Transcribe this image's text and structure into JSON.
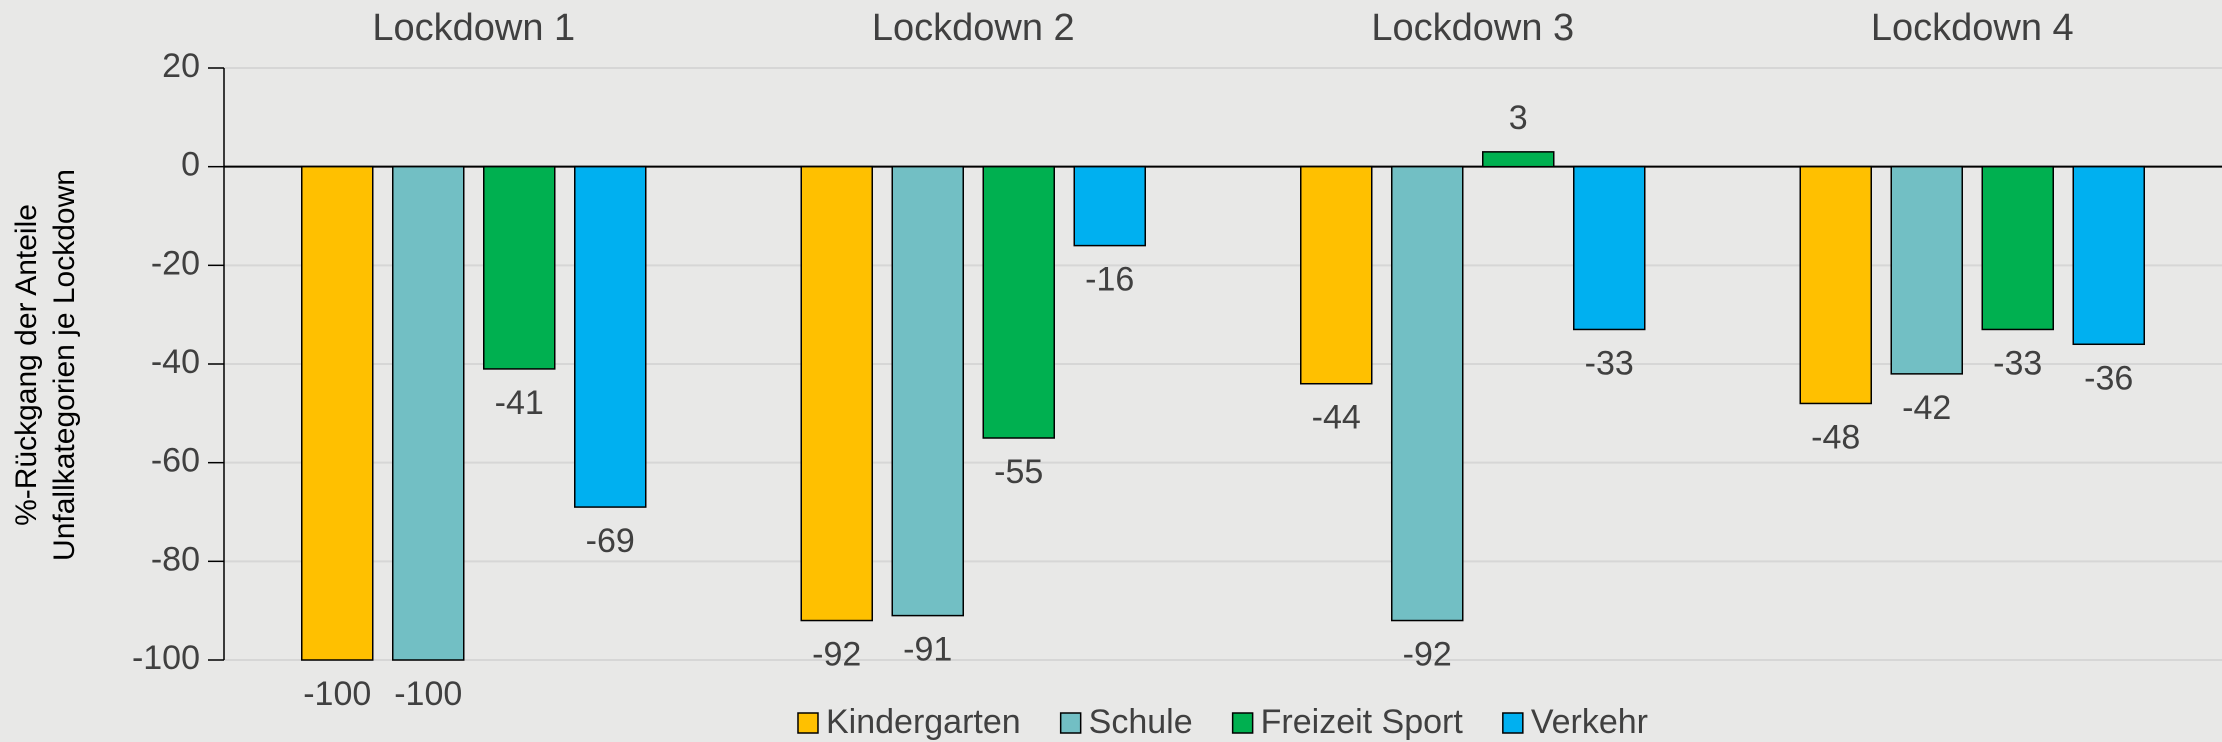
{
  "chart_data": {
    "type": "bar",
    "ylabel": [
      "%-Rückgang der Anteile",
      "Unfallkategorien je Lockdown"
    ],
    "categories": [
      "Lockdown 1",
      "Lockdown 2",
      "Lockdown 3",
      "Lockdown 4"
    ],
    "series": [
      {
        "name": "Kindergarten",
        "color": "#FFC000",
        "values": [
          -100,
          -92,
          -44,
          -48
        ]
      },
      {
        "name": "Schule",
        "color": "#72BFC4",
        "values": [
          -100,
          -91,
          -92,
          -42
        ]
      },
      {
        "name": "Freizeit Sport",
        "color": "#00B050",
        "values": [
          -41,
          -55,
          3,
          -33
        ]
      },
      {
        "name": "Verkehr",
        "color": "#00B0F0",
        "values": [
          -69,
          -16,
          -33,
          -36
        ]
      }
    ],
    "ylim": [
      -100,
      20
    ],
    "yticks": [
      -100,
      -80,
      -60,
      -40,
      -20,
      0,
      20
    ],
    "grid": true,
    "legend": "bottom"
  }
}
